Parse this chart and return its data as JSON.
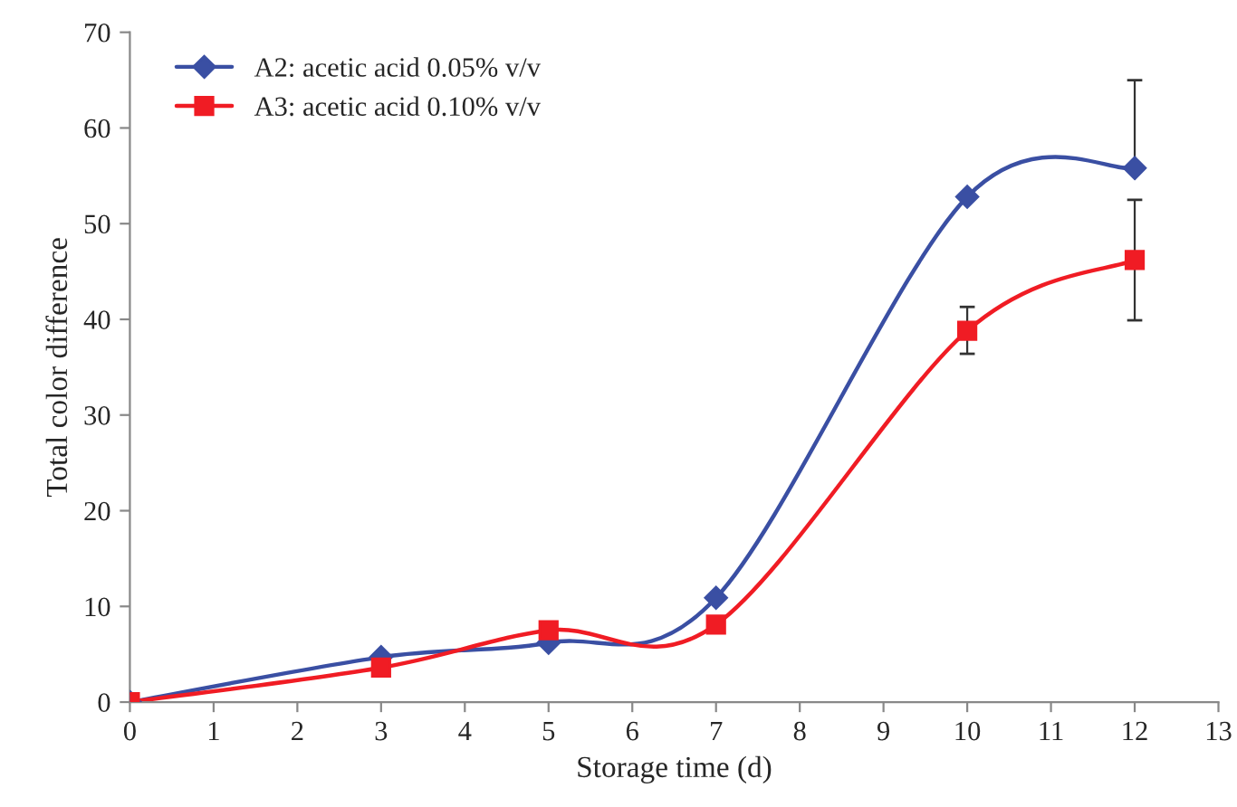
{
  "chart_data": {
    "type": "line",
    "xlabel": "Storage time (d)",
    "ylabel": "Total color difference",
    "x": [
      0,
      3,
      5,
      7,
      10,
      12
    ],
    "series": [
      {
        "name": "A2: acetic acid 0.05% v/v",
        "color": "#3a4fa3",
        "marker": "diamond",
        "values": [
          0,
          4.7,
          6.2,
          10.9,
          52.8,
          55.8
        ],
        "errors": [
          null,
          null,
          null,
          null,
          null,
          [
            55.8,
            65
          ]
        ]
      },
      {
        "name": "A3: acetic acid 0.10% v/v",
        "color": "#f01c24",
        "marker": "square",
        "values": [
          0,
          3.6,
          7.5,
          8.1,
          38.8,
          46.2
        ],
        "errors": [
          null,
          null,
          null,
          null,
          [
            36.4,
            41.3
          ],
          [
            39.9,
            52.5
          ]
        ]
      }
    ],
    "xlim": [
      0,
      13
    ],
    "xticks": [
      0,
      1,
      2,
      3,
      4,
      5,
      6,
      7,
      8,
      9,
      10,
      11,
      12,
      13
    ],
    "ylim": [
      0,
      70
    ],
    "yticks": [
      0,
      10,
      20,
      30,
      40,
      50,
      60,
      70
    ],
    "grid": false,
    "legend": "top left",
    "line_style": "solid"
  }
}
